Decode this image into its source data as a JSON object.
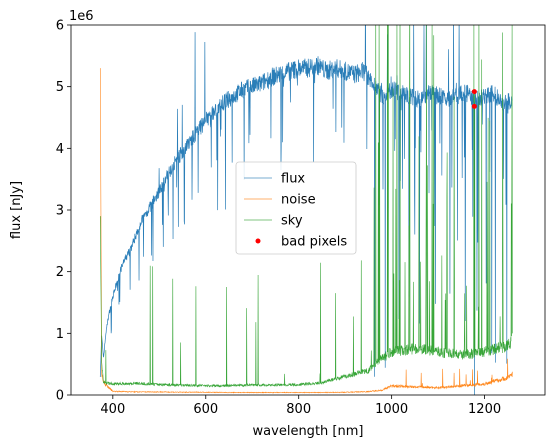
{
  "chart_data": {
    "type": "line",
    "xlabel": "wavelength [nm]",
    "ylabel": "flux [nJy]",
    "y_offset_label": "1e6",
    "xlim": [
      310,
      1330
    ],
    "ylim": [
      0,
      6000000
    ],
    "x_ticks": [
      {
        "value": 400,
        "label": "400"
      },
      {
        "value": 600,
        "label": "600"
      },
      {
        "value": 800,
        "label": "800"
      },
      {
        "value": 1000,
        "label": "1000"
      },
      {
        "value": 1200,
        "label": "1200"
      }
    ],
    "y_ticks": [
      {
        "value": 0,
        "label": "0"
      },
      {
        "value": 1000000,
        "label": "1"
      },
      {
        "value": 2000000,
        "label": "2"
      },
      {
        "value": 3000000,
        "label": "3"
      },
      {
        "value": 4000000,
        "label": "4"
      },
      {
        "value": 5000000,
        "label": "5"
      },
      {
        "value": 6000000,
        "label": "6"
      }
    ],
    "grid": false,
    "legend_position": "center",
    "series": [
      {
        "name": "flux",
        "color": "#1f77b4",
        "style": "line",
        "x": [
          373,
          376,
          380,
          385,
          390,
          400,
          420,
          440,
          460,
          480,
          500,
          520,
          540,
          560,
          580,
          600,
          620,
          640,
          660,
          680,
          700,
          720,
          740,
          760,
          780,
          800,
          820,
          840,
          860,
          880,
          900,
          920,
          940,
          960,
          980,
          1000,
          1020,
          1040,
          1060,
          1080,
          1100,
          1120,
          1140,
          1160,
          1180,
          1200,
          1220,
          1240,
          1260
        ],
        "y": [
          300000,
          950000,
          600000,
          1000000,
          1250000,
          1600000,
          2100000,
          2400000,
          2800000,
          3050000,
          3300000,
          3600000,
          3850000,
          4050000,
          4250000,
          4450000,
          4600000,
          4750000,
          4850000,
          4950000,
          5000000,
          5050000,
          5150000,
          5200000,
          5250000,
          5300000,
          5300000,
          5350000,
          5250000,
          5300000,
          5250000,
          5200000,
          5250000,
          5100000,
          4850000,
          4950000,
          4900000,
          4850000,
          4800000,
          4900000,
          4850000,
          4800000,
          4850000,
          4900000,
          4800000,
          4850000,
          4900000,
          4700000,
          4800000
        ]
      },
      {
        "name": "noise",
        "color": "#ff7f0e",
        "style": "line",
        "x": [
          373,
          376,
          380,
          400,
          450,
          500,
          550,
          600,
          650,
          700,
          750,
          800,
          850,
          900,
          950,
          980,
          1000,
          1050,
          1100,
          1150,
          1200,
          1250,
          1260
        ],
        "y": [
          5300000,
          350000,
          200000,
          60000,
          50000,
          50000,
          45000,
          45000,
          40000,
          40000,
          40000,
          40000,
          40000,
          45000,
          55000,
          80000,
          150000,
          130000,
          120000,
          150000,
          180000,
          280000,
          350000
        ]
      },
      {
        "name": "sky",
        "color": "#2ca02c",
        "style": "line",
        "x": [
          373,
          376,
          380,
          400,
          450,
          500,
          550,
          600,
          650,
          700,
          750,
          800,
          850,
          900,
          950,
          980,
          1000,
          1050,
          1100,
          1150,
          1200,
          1250,
          1260
        ],
        "y": [
          2900000,
          500000,
          200000,
          180000,
          190000,
          170000,
          160000,
          150000,
          150000,
          160000,
          160000,
          170000,
          200000,
          300000,
          400000,
          600000,
          700000,
          750000,
          700000,
          650000,
          700000,
          800000,
          900000
        ]
      },
      {
        "name": "bad pixels",
        "color": "#ff0000",
        "style": "scatter",
        "x": [
          1178,
          1178
        ],
        "y": [
          4920000,
          4680000
        ]
      }
    ]
  }
}
